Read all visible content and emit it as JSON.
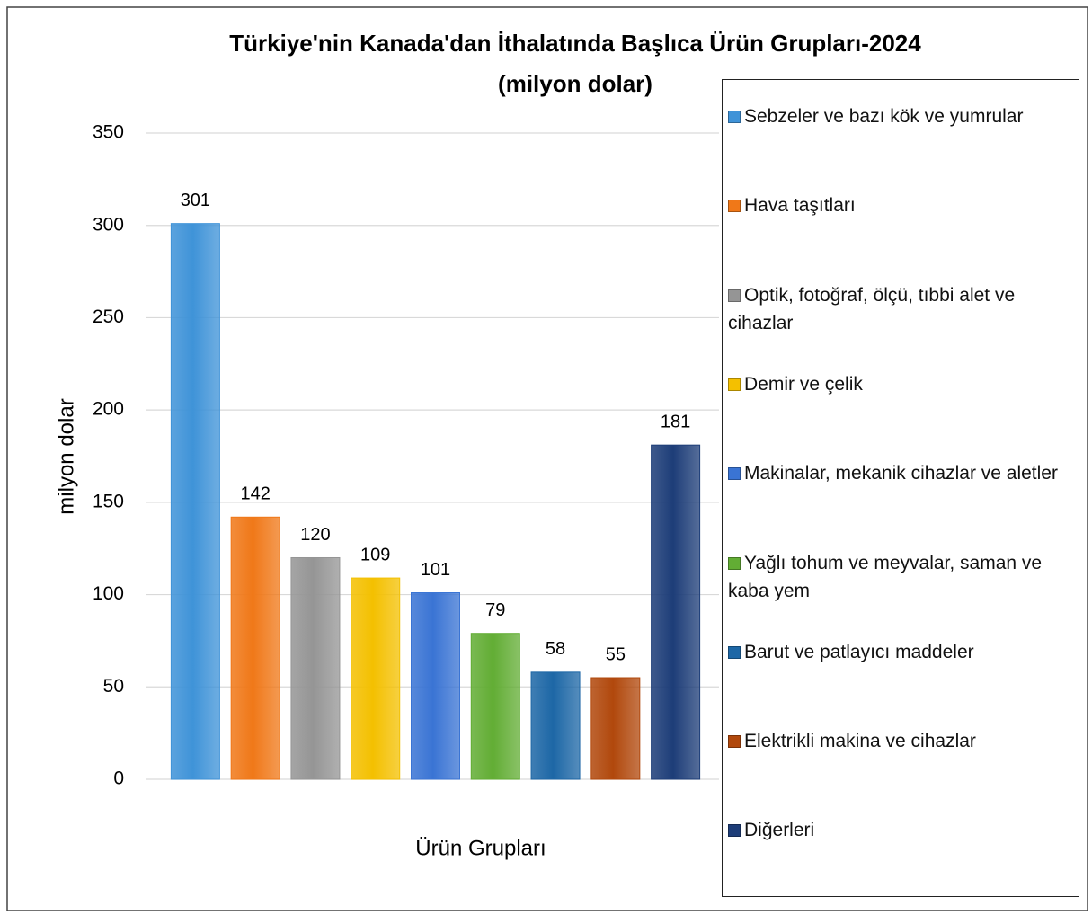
{
  "chart_data": {
    "type": "bar",
    "title": "Türkiye'nin Kanada'dan İthalatında Başlıca Ürün Grupları-2024",
    "subtitle": "(milyon dolar)",
    "x_label": "Ürün Grupları",
    "y_label": "milyon dolar",
    "categories": [
      "Sebzeler ve bazı kök ve yumrular",
      "Hava taşıtları",
      "Optik, fotoğraf, ölçü, tıbbi alet ve cihazlar",
      "Demir ve çelik",
      "Makinalar, mekanik cihazlar ve aletler",
      "Yağlı tohum ve meyvalar, saman ve kaba yem",
      "Barut ve patlayıcı maddeler",
      "Elektrikli makina ve cihazlar",
      "Diğerleri"
    ],
    "values": [
      301,
      142,
      120,
      109,
      101,
      79,
      58,
      55,
      181
    ],
    "colors": [
      "#3f93d8",
      "#f07818",
      "#959595",
      "#f4c000",
      "#3a74d4",
      "#62ad34",
      "#1d67a6",
      "#b1480c",
      "#1d3d78"
    ],
    "ylim": [
      0,
      350
    ],
    "yticks": [
      0,
      50,
      100,
      150,
      200,
      250,
      300,
      350
    ],
    "grid": true,
    "legend": "right"
  }
}
